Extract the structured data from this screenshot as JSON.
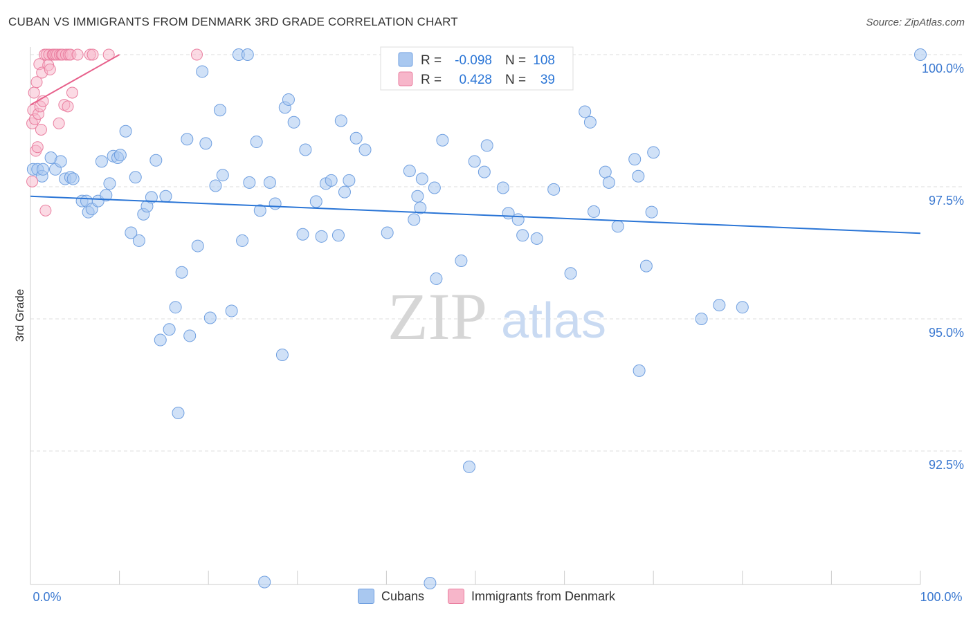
{
  "title": "CUBAN VS IMMIGRANTS FROM DENMARK 3RD GRADE CORRELATION CHART",
  "source": "Source: ZipAtlas.com",
  "watermark": {
    "zip": "ZIP",
    "atlas": "atlas"
  },
  "colors": {
    "blue": "#a9c8f0",
    "blue_stroke": "#6f9fe0",
    "blue_line": "#2a75d6",
    "pink": "#f7b6ca",
    "pink_stroke": "#ea7fa0",
    "pink_line": "#e7608b",
    "axis_text": "#3a78d0",
    "grid": "#dddddd"
  },
  "legend_box": {
    "rows": [
      {
        "r_label": "R =",
        "r_value": "-0.098",
        "n_label": "N =",
        "n_value": "108"
      },
      {
        "r_label": "R =",
        "r_value": "0.428",
        "n_label": "N =",
        "n_value": "39"
      }
    ]
  },
  "legend_bottom": {
    "blue": "Cubans",
    "pink": "Immigrants from Denmark"
  },
  "chart_data": {
    "type": "scatter",
    "title": "CUBAN VS IMMIGRANTS FROM DENMARK 3RD GRADE CORRELATION CHART",
    "xlabel": "",
    "ylabel": "3rd Grade",
    "xlim": [
      0,
      100
    ],
    "ylim": [
      89.6,
      100.3
    ],
    "x_tick_labels": [
      "0.0%",
      "100.0%"
    ],
    "y_ticks": [
      100.0,
      97.5,
      95.0,
      92.5
    ],
    "y_tick_labels": [
      "100.0%",
      "97.5%",
      "95.0%",
      "92.5%"
    ],
    "series": [
      {
        "name": "Cubans",
        "r": -0.098,
        "n": 108,
        "trend": {
          "x": [
            0,
            100
          ],
          "y": [
            97.32,
            96.62
          ]
        },
        "points": [
          [
            0.3,
            97.83
          ],
          [
            0.8,
            97.83
          ],
          [
            1.3,
            97.7
          ],
          [
            1.4,
            97.83
          ],
          [
            2.3,
            98.05
          ],
          [
            2.8,
            97.83
          ],
          [
            3.4,
            97.98
          ],
          [
            3.9,
            97.65
          ],
          [
            4.5,
            97.68
          ],
          [
            4.8,
            97.65
          ],
          [
            5.8,
            97.23
          ],
          [
            6.3,
            97.23
          ],
          [
            6.5,
            97.02
          ],
          [
            6.9,
            97.08
          ],
          [
            7.6,
            97.23
          ],
          [
            8.0,
            97.98
          ],
          [
            8.5,
            97.34
          ],
          [
            8.9,
            97.56
          ],
          [
            9.3,
            98.08
          ],
          [
            9.8,
            98.05
          ],
          [
            10.1,
            98.1
          ],
          [
            10.7,
            98.55
          ],
          [
            11.3,
            96.63
          ],
          [
            11.8,
            97.68
          ],
          [
            12.2,
            96.48
          ],
          [
            12.7,
            96.98
          ],
          [
            13.1,
            97.13
          ],
          [
            13.6,
            97.3
          ],
          [
            14.1,
            98.0
          ],
          [
            14.6,
            94.6
          ],
          [
            15.2,
            97.32
          ],
          [
            15.6,
            94.8
          ],
          [
            16.3,
            95.22
          ],
          [
            16.6,
            93.22
          ],
          [
            17.0,
            95.88
          ],
          [
            17.6,
            98.4
          ],
          [
            17.9,
            94.68
          ],
          [
            18.8,
            96.38
          ],
          [
            19.3,
            99.68
          ],
          [
            19.7,
            98.32
          ],
          [
            20.2,
            95.02
          ],
          [
            20.8,
            97.52
          ],
          [
            21.3,
            98.95
          ],
          [
            21.6,
            97.72
          ],
          [
            22.6,
            95.15
          ],
          [
            23.4,
            100.0
          ],
          [
            23.8,
            96.48
          ],
          [
            24.4,
            100.0
          ],
          [
            24.6,
            97.58
          ],
          [
            25.4,
            98.35
          ],
          [
            25.8,
            97.05
          ],
          [
            26.3,
            90.02
          ],
          [
            26.9,
            97.58
          ],
          [
            27.5,
            97.18
          ],
          [
            28.3,
            94.32
          ],
          [
            28.6,
            99.0
          ],
          [
            29.0,
            99.15
          ],
          [
            29.6,
            98.72
          ],
          [
            30.6,
            96.6
          ],
          [
            30.9,
            98.2
          ],
          [
            32.1,
            97.22
          ],
          [
            32.7,
            96.56
          ],
          [
            33.2,
            97.56
          ],
          [
            33.8,
            97.62
          ],
          [
            34.6,
            96.58
          ],
          [
            34.9,
            98.75
          ],
          [
            35.3,
            97.4
          ],
          [
            35.8,
            97.62
          ],
          [
            36.6,
            98.42
          ],
          [
            37.6,
            98.2
          ],
          [
            40.1,
            96.63
          ],
          [
            42.6,
            97.8
          ],
          [
            43.1,
            96.88
          ],
          [
            43.5,
            97.32
          ],
          [
            43.8,
            97.1
          ],
          [
            44.0,
            97.65
          ],
          [
            44.9,
            90.0
          ],
          [
            45.4,
            97.48
          ],
          [
            45.6,
            95.76
          ],
          [
            46.3,
            98.38
          ],
          [
            48.4,
            96.1
          ],
          [
            49.3,
            92.2
          ],
          [
            49.9,
            97.98
          ],
          [
            51.0,
            97.78
          ],
          [
            51.3,
            98.28
          ],
          [
            53.1,
            97.48
          ],
          [
            53.7,
            97.0
          ],
          [
            54.8,
            96.88
          ],
          [
            55.3,
            96.58
          ],
          [
            56.9,
            96.52
          ],
          [
            58.8,
            97.45
          ],
          [
            60.7,
            95.86
          ],
          [
            62.3,
            98.92
          ],
          [
            62.9,
            98.72
          ],
          [
            63.3,
            97.03
          ],
          [
            64.6,
            97.78
          ],
          [
            65.0,
            97.58
          ],
          [
            66.0,
            96.75
          ],
          [
            67.9,
            98.02
          ],
          [
            68.3,
            97.7
          ],
          [
            68.4,
            94.02
          ],
          [
            69.2,
            96.0
          ],
          [
            69.8,
            97.02
          ],
          [
            70.0,
            98.15
          ],
          [
            75.4,
            95.0
          ],
          [
            77.4,
            95.26
          ],
          [
            80.0,
            95.22
          ],
          [
            100.0,
            100.0
          ]
        ]
      },
      {
        "name": "Immigrants from Denmark",
        "r": 0.428,
        "n": 39,
        "trend": {
          "x": [
            0,
            10
          ],
          "y": [
            99.05,
            100.0
          ]
        },
        "points": [
          [
            0.2,
            97.6
          ],
          [
            0.2,
            98.7
          ],
          [
            0.3,
            98.95
          ],
          [
            0.4,
            99.28
          ],
          [
            0.5,
            98.78
          ],
          [
            0.6,
            98.18
          ],
          [
            0.7,
            99.48
          ],
          [
            0.8,
            98.25
          ],
          [
            0.9,
            98.88
          ],
          [
            1.0,
            99.82
          ],
          [
            1.1,
            99.02
          ],
          [
            1.2,
            98.58
          ],
          [
            1.3,
            99.66
          ],
          [
            1.4,
            99.12
          ],
          [
            1.6,
            100.0
          ],
          [
            1.7,
            97.05
          ],
          [
            1.8,
            100.0
          ],
          [
            2.0,
            99.8
          ],
          [
            2.1,
            100.0
          ],
          [
            2.2,
            99.72
          ],
          [
            2.5,
            100.0
          ],
          [
            2.6,
            100.0
          ],
          [
            2.8,
            100.0
          ],
          [
            3.0,
            100.0
          ],
          [
            3.2,
            98.7
          ],
          [
            3.3,
            100.0
          ],
          [
            3.5,
            100.0
          ],
          [
            3.6,
            100.0
          ],
          [
            3.8,
            99.05
          ],
          [
            4.0,
            100.0
          ],
          [
            4.2,
            99.02
          ],
          [
            4.3,
            100.0
          ],
          [
            4.5,
            100.0
          ],
          [
            4.7,
            99.28
          ],
          [
            5.3,
            100.0
          ],
          [
            6.7,
            100.0
          ],
          [
            7.0,
            100.0
          ],
          [
            8.8,
            100.0
          ],
          [
            18.7,
            100.0
          ]
        ]
      }
    ]
  }
}
